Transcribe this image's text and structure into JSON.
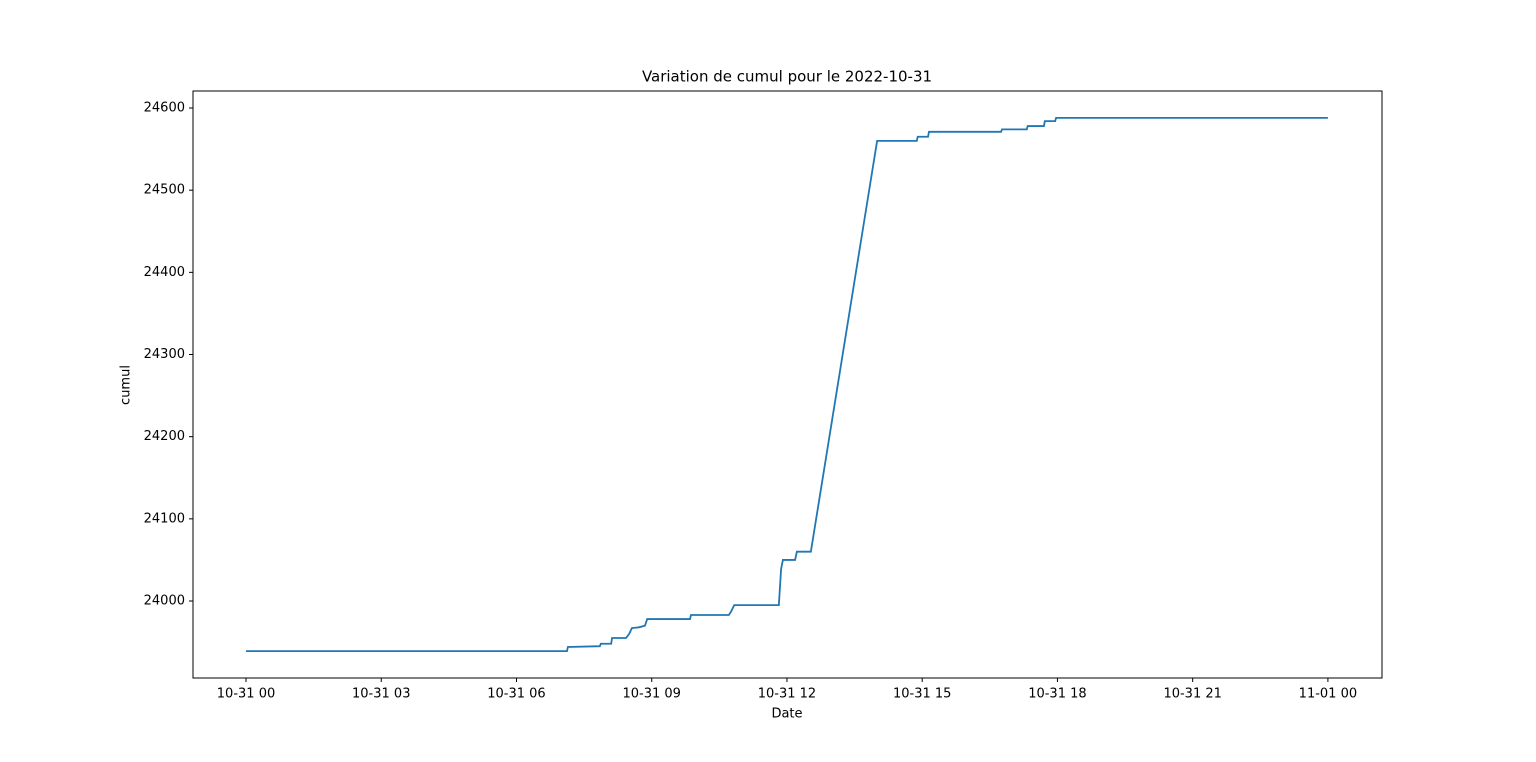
{
  "chart_data": {
    "type": "line",
    "title": "Variation de cumul pour le 2022-10-31",
    "x_label": "Date",
    "y_label": "cumul",
    "x": [
      0,
      7.12,
      7.14,
      7.85,
      7.87,
      8.1,
      8.12,
      8.43,
      8.5,
      8.56,
      8.72,
      8.85,
      8.9,
      9.85,
      9.87,
      10.71,
      10.76,
      10.83,
      11.82,
      11.87,
      11.91,
      12.18,
      12.22,
      12.53,
      14.0,
      14.88,
      14.9,
      15.13,
      15.15,
      16.75,
      16.77,
      17.32,
      17.34,
      17.7,
      17.72,
      17.95,
      17.97,
      24.0
    ],
    "series": [
      {
        "name": "cumul",
        "color": "#1f77b4",
        "values": [
          23939,
          23939,
          23944,
          23945,
          23948,
          23948,
          23955,
          23955,
          23960,
          23967,
          23968,
          23970,
          23978,
          23978,
          23983,
          23983,
          23987,
          23995,
          23995,
          24039,
          24050,
          24050,
          24060,
          24060,
          24560,
          24560,
          24565,
          24565,
          24571,
          24571,
          24574,
          24574,
          24578,
          24578,
          24584,
          24584,
          24588,
          24588
        ]
      }
    ],
    "xlim": [
      -1.176,
      25.2
    ],
    "xticks": [
      {
        "value": 0,
        "label": "10-31 00"
      },
      {
        "value": 3,
        "label": "10-31 03"
      },
      {
        "value": 6,
        "label": "10-31 06"
      },
      {
        "value": 9,
        "label": "10-31 09"
      },
      {
        "value": 12,
        "label": "10-31 12"
      },
      {
        "value": 15,
        "label": "10-31 15"
      },
      {
        "value": 18,
        "label": "10-31 18"
      },
      {
        "value": 21,
        "label": "10-31 21"
      },
      {
        "value": 24,
        "label": "11-01 00"
      }
    ],
    "ylim": [
      23906.3,
      24620.7
    ],
    "yticks": [
      24000,
      24100,
      24200,
      24300,
      24400,
      24500,
      24600
    ],
    "grid": false
  }
}
